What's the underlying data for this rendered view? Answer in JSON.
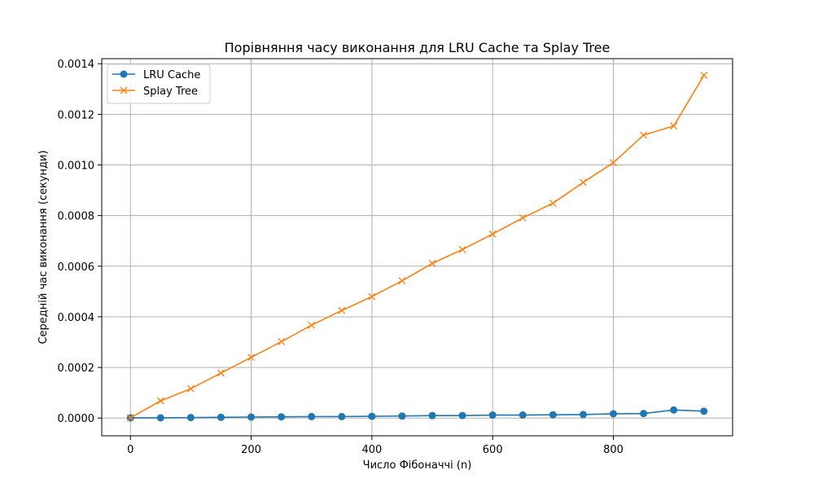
{
  "chart_data": {
    "type": "line",
    "title": "Порівняння часу виконання для LRU Cache та Splay Tree",
    "xlabel": "Число Фібоначчі (n)",
    "ylabel": "Середній час виконання (секунди)",
    "xlim": [
      -47.5,
      997.5
    ],
    "ylim": [
      -7e-05,
      0.00142
    ],
    "xticks": [
      0,
      200,
      400,
      600,
      800
    ],
    "xtick_labels": [
      "0",
      "200",
      "400",
      "600",
      "800"
    ],
    "yticks": [
      0,
      0.0002,
      0.0004,
      0.0006,
      0.0008,
      0.001,
      0.0012,
      0.0014
    ],
    "ytick_labels": [
      "0.0000",
      "0.0002",
      "0.0004",
      "0.0006",
      "0.0008",
      "0.0010",
      "0.0012",
      "0.0014"
    ],
    "grid": true,
    "legend_position": "top-left",
    "x": [
      0,
      50,
      100,
      150,
      200,
      250,
      300,
      350,
      400,
      450,
      500,
      550,
      600,
      650,
      700,
      750,
      800,
      850,
      900,
      950
    ],
    "series": [
      {
        "name": "LRU Cache",
        "color": "#1f77b4",
        "marker": "circle",
        "values": [
          1e-06,
          1e-06,
          2e-06,
          3e-06,
          4e-06,
          5e-06,
          6e-06,
          6e-06,
          7e-06,
          8e-06,
          1e-05,
          1e-05,
          1.2e-05,
          1.2e-05,
          1.3e-05,
          1.4e-05,
          1.7e-05,
          1.8e-05,
          3.2e-05,
          2.7e-05
        ]
      },
      {
        "name": "Splay Tree",
        "color": "#ff7f0e",
        "marker": "x",
        "values": [
          1e-06,
          6.8e-05,
          0.000116,
          0.000178,
          0.00024,
          0.000302,
          0.000367,
          0.000425,
          0.00048,
          0.000542,
          0.000611,
          0.000666,
          0.000727,
          0.000791,
          0.000849,
          0.000931,
          0.001009,
          0.001118,
          0.001154,
          0.001354
        ]
      }
    ]
  }
}
